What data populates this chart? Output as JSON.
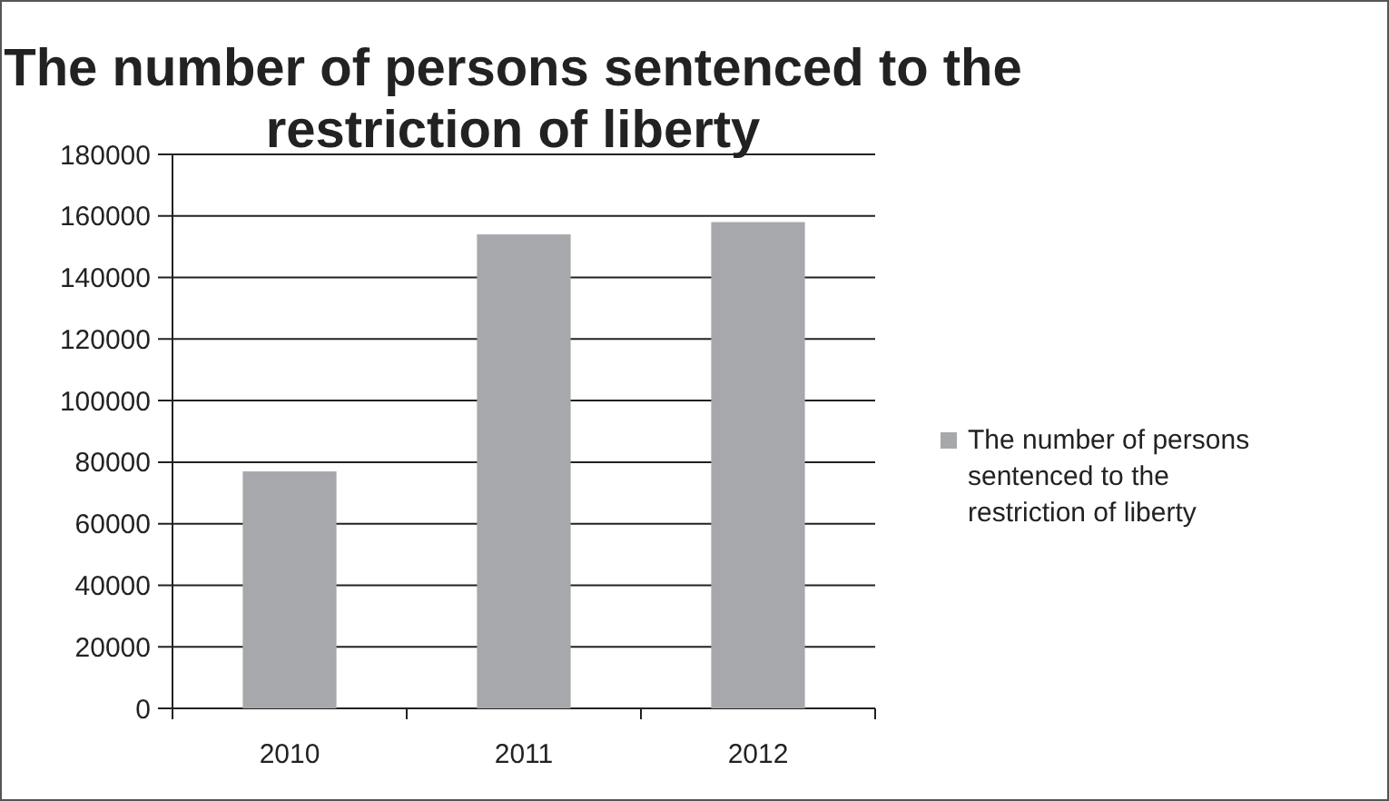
{
  "chart_data": {
    "type": "bar",
    "title": "The number of persons sentenced to the restriction of liberty",
    "categories": [
      "2010",
      "2011",
      "2012"
    ],
    "series": [
      {
        "name": "The number of persons sentenced to the restriction of liberty",
        "color": "#a7a8ab",
        "values": [
          77000,
          154000,
          158000
        ]
      }
    ],
    "ylim": [
      0,
      180000
    ],
    "yticks": [
      0,
      20000,
      40000,
      60000,
      80000,
      100000,
      120000,
      140000,
      160000,
      180000
    ],
    "grid": "y",
    "legend": "right"
  }
}
